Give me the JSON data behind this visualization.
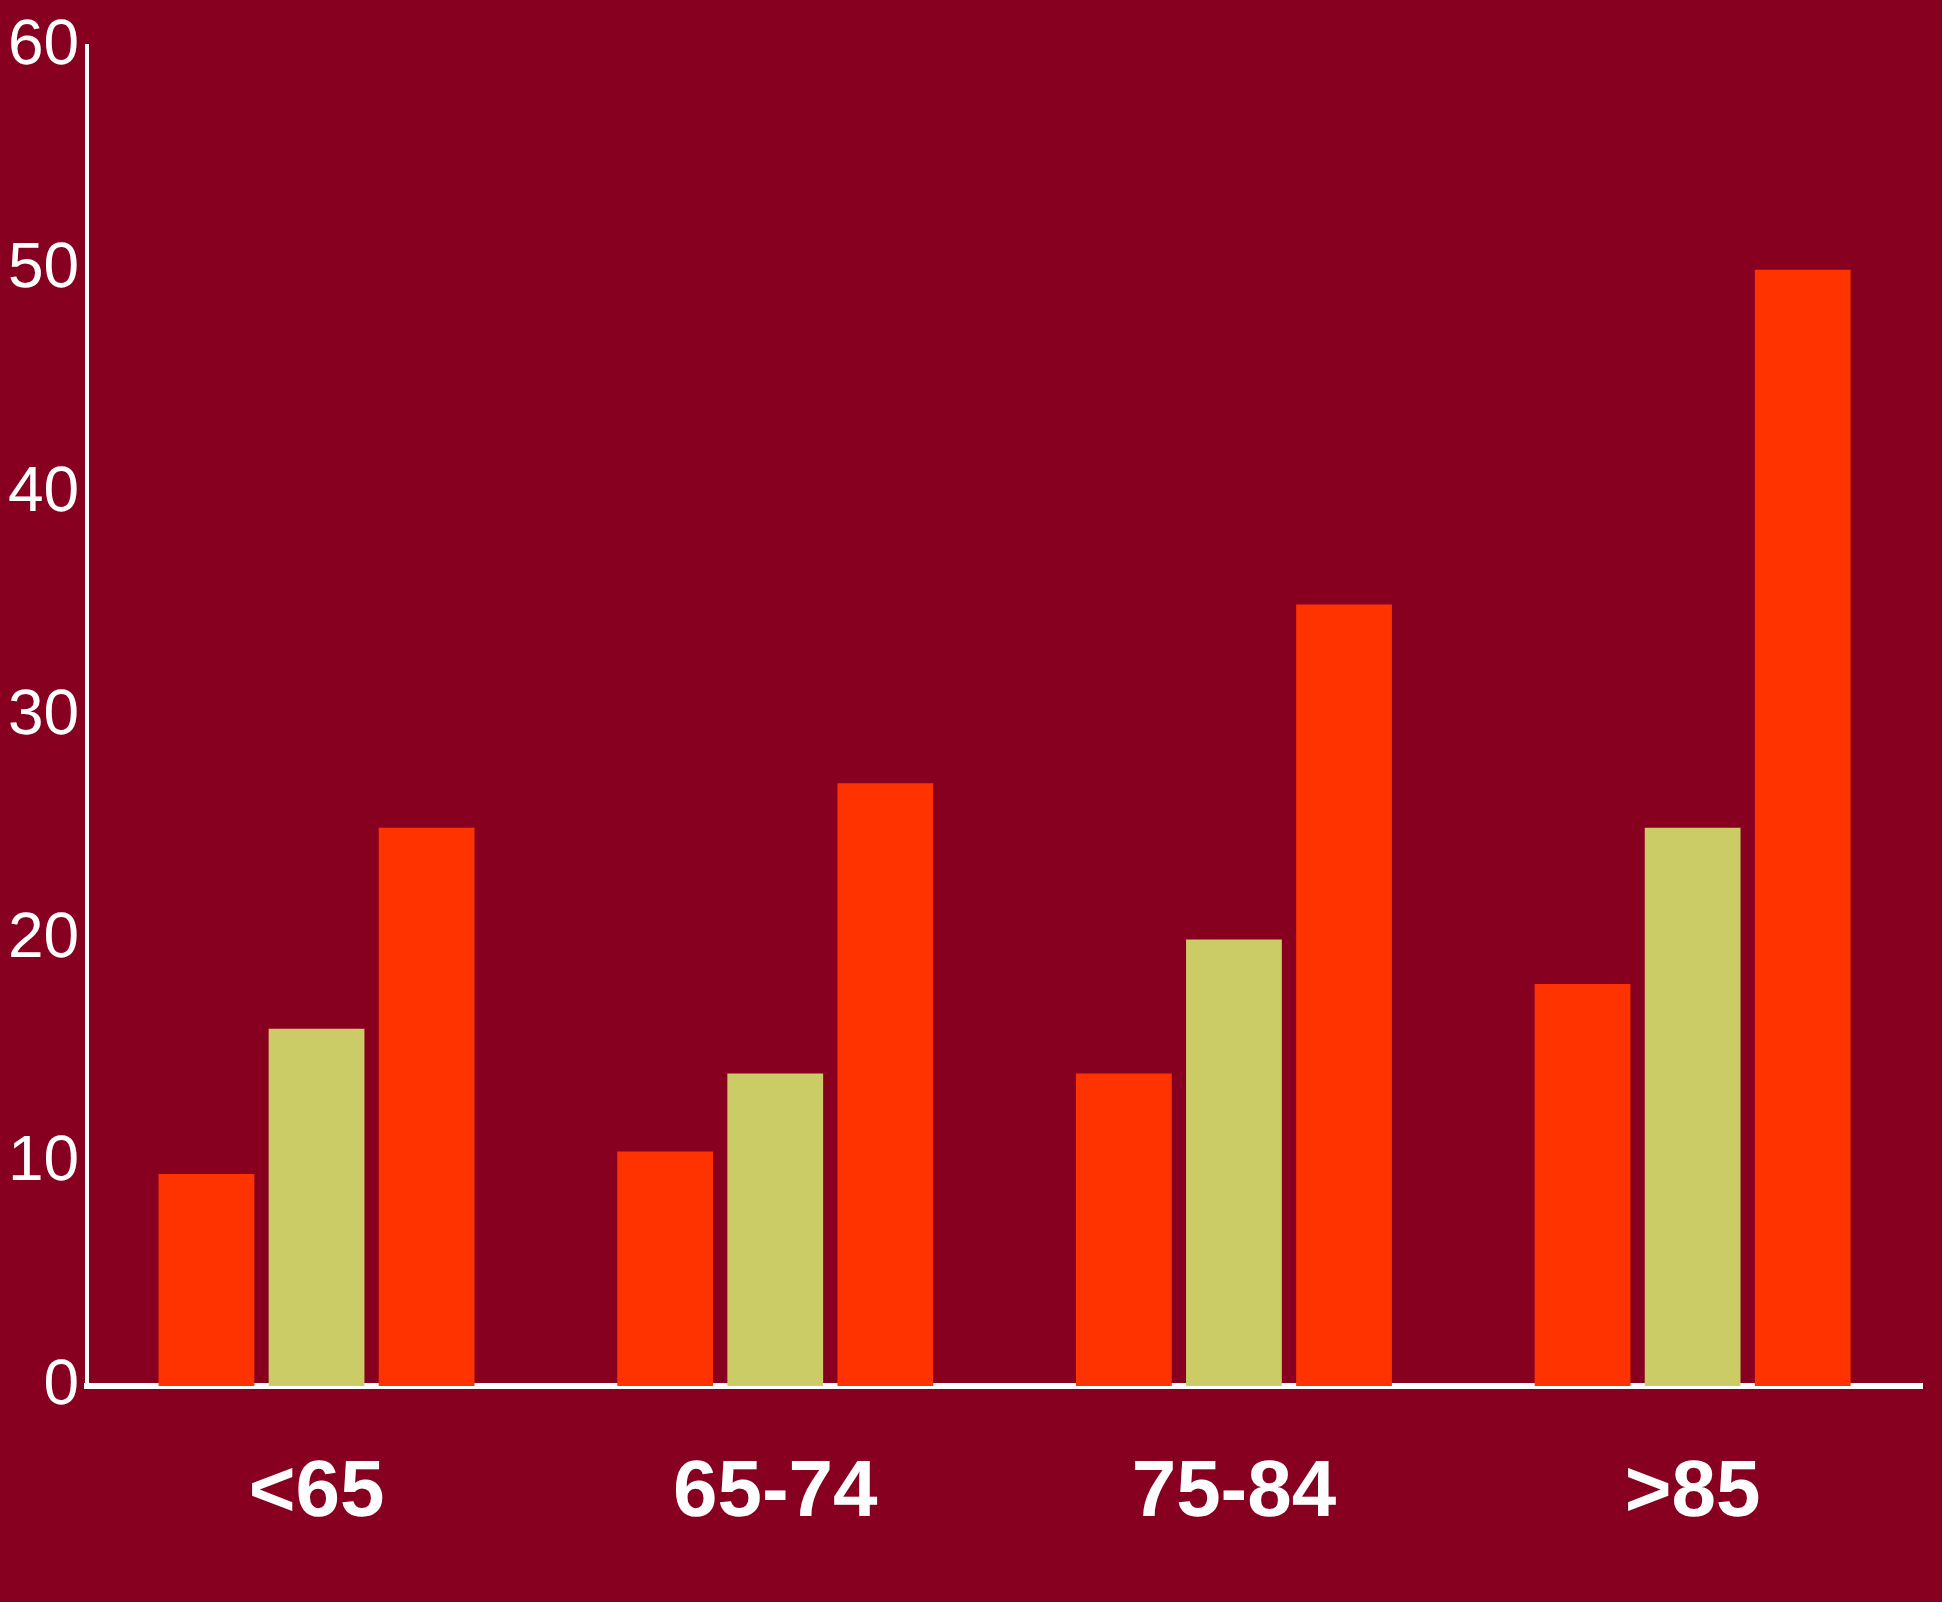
{
  "chart_data": {
    "type": "bar",
    "categories": [
      "<65",
      "65-74",
      "75-84",
      ">85"
    ],
    "series": [
      {
        "color": "#ff3300",
        "values": [
          9.5,
          10.5,
          14,
          18
        ]
      },
      {
        "color": "#cccc66",
        "values": [
          16,
          14,
          20,
          25
        ]
      },
      {
        "color": "#ff3300",
        "values": [
          25,
          27,
          35,
          50
        ]
      }
    ],
    "ylim": [
      0,
      60
    ],
    "yticks": [
      0,
      10,
      20,
      30,
      40,
      50,
      60
    ],
    "grid": false,
    "legend": false
  }
}
